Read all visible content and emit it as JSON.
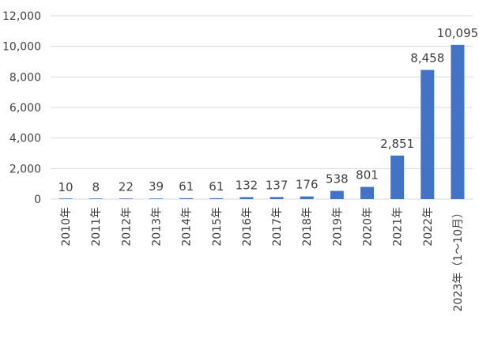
{
  "chart_data": {
    "type": "bar",
    "categories": [
      "2010年",
      "2011年",
      "2012年",
      "2013年",
      "2014年",
      "2015年",
      "2016年",
      "2017年",
      "2018年",
      "2019年",
      "2020年",
      "2021年",
      "2022年",
      "2023年（1～10月）"
    ],
    "values": [
      10,
      8,
      22,
      39,
      61,
      61,
      132,
      137,
      176,
      538,
      801,
      2851,
      8458,
      10095
    ],
    "value_labels": [
      "10",
      "8",
      "22",
      "39",
      "61",
      "61",
      "132",
      "137",
      "176",
      "538",
      "801",
      "2,851",
      "8,458",
      "10,095"
    ],
    "y_ticks": [
      0,
      2000,
      4000,
      6000,
      8000,
      10000,
      12000
    ],
    "y_tick_labels": [
      "0",
      "2,000",
      "4,000",
      "6,000",
      "8,000",
      "10,000",
      "12,000"
    ],
    "ylim": [
      0,
      12000
    ],
    "grid": true,
    "legend": "none",
    "bar_color": "#4472c4",
    "grid_color": "#d9d9d9"
  }
}
